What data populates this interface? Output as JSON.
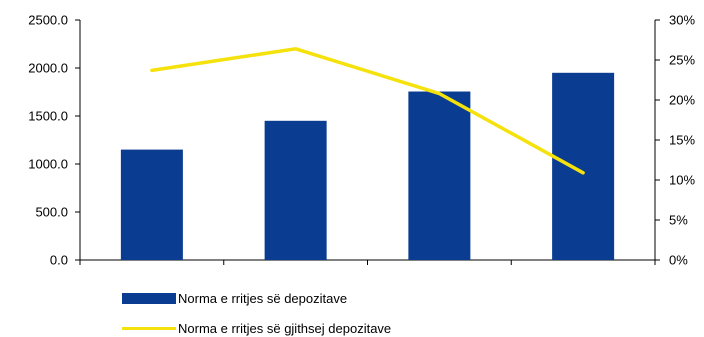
{
  "chart_data": {
    "type": "bar",
    "categories": [
      "",
      "",
      "",
      ""
    ],
    "series": [
      {
        "name": "Norma e rritjes së depozitave",
        "type": "bar",
        "axis": "left",
        "values": [
          1150,
          1450,
          1755,
          1950
        ],
        "color": "#0A3D91"
      },
      {
        "name": "Norma e rritjes së gjithsej depozitave",
        "type": "line",
        "axis": "right",
        "values": [
          23.7,
          26.4,
          20.8,
          10.9
        ],
        "color": "#F5E10C"
      }
    ],
    "y_left": {
      "ylim": [
        0,
        2500
      ],
      "ticks": [
        "0.0",
        "500.0",
        "1000.0",
        "1500.0",
        "2000.0",
        "2500.0"
      ]
    },
    "y_right": {
      "ylim": [
        0,
        30
      ],
      "ticks": [
        "0%",
        "5%",
        "10%",
        "15%",
        "20%",
        "25%",
        "30%"
      ]
    },
    "title": "",
    "xlabel": "",
    "ylabel": "",
    "grid": false,
    "legend_position": "bottom-left"
  }
}
